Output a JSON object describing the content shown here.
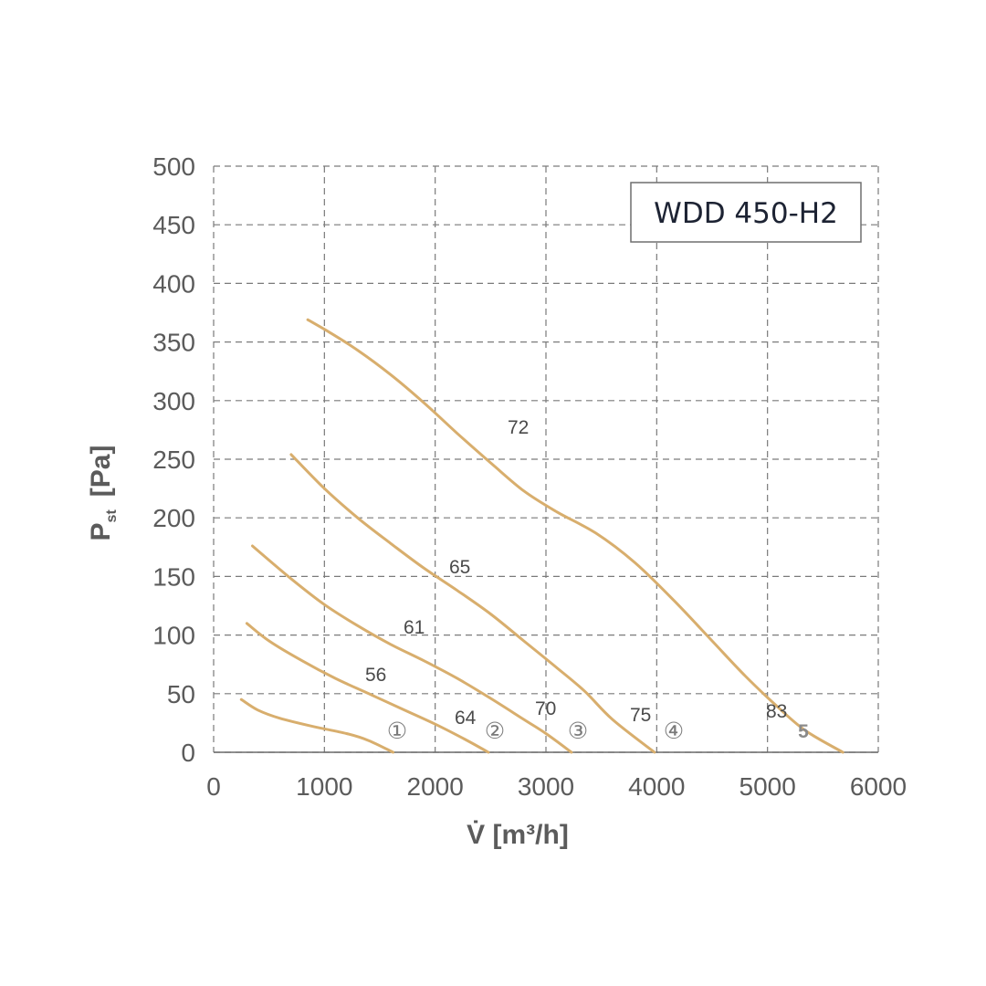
{
  "chart_data": {
    "type": "line",
    "title": "WDD 450-H2",
    "xlabel": "V̇ [m³/h]",
    "ylabel": "Pst [Pa]",
    "ylabel_main": "P",
    "ylabel_sub": "st",
    "ylabel_unit": "[Pa]",
    "xlim": [
      0,
      6000
    ],
    "ylim": [
      0,
      500
    ],
    "xticks": [
      "0",
      "1000",
      "2000",
      "3000",
      "4000",
      "5000",
      "6000"
    ],
    "yticks": [
      "0",
      "50",
      "100",
      "150",
      "200",
      "250",
      "300",
      "350",
      "400",
      "450",
      "500"
    ],
    "grid": true,
    "line_color": "#d8ae6d",
    "series": [
      {
        "name": "①",
        "points": [
          [
            250,
            45
          ],
          [
            400,
            36
          ],
          [
            600,
            29
          ],
          [
            900,
            22
          ],
          [
            1200,
            16
          ],
          [
            1400,
            10
          ],
          [
            1620,
            0
          ]
        ]
      },
      {
        "name": "②",
        "points": [
          [
            300,
            110
          ],
          [
            500,
            95
          ],
          [
            800,
            78
          ],
          [
            1100,
            63
          ],
          [
            1400,
            50
          ],
          [
            1700,
            37
          ],
          [
            2000,
            24
          ],
          [
            2250,
            12
          ],
          [
            2480,
            0
          ]
        ]
      },
      {
        "name": "③",
        "points": [
          [
            350,
            176
          ],
          [
            700,
            148
          ],
          [
            1000,
            126
          ],
          [
            1300,
            108
          ],
          [
            1600,
            92
          ],
          [
            1900,
            78
          ],
          [
            2200,
            63
          ],
          [
            2500,
            46
          ],
          [
            2800,
            28
          ],
          [
            3000,
            16
          ],
          [
            3230,
            0
          ]
        ]
      },
      {
        "name": "④",
        "points": [
          [
            700,
            254
          ],
          [
            1000,
            225
          ],
          [
            1300,
            200
          ],
          [
            1600,
            178
          ],
          [
            1900,
            157
          ],
          [
            2200,
            138
          ],
          [
            2500,
            118
          ],
          [
            2800,
            95
          ],
          [
            3100,
            72
          ],
          [
            3350,
            52
          ],
          [
            3600,
            28
          ],
          [
            3980,
            0
          ]
        ]
      },
      {
        "name": "5",
        "points": [
          [
            850,
            369
          ],
          [
            1050,
            358
          ],
          [
            1300,
            343
          ],
          [
            1600,
            322
          ],
          [
            1900,
            298
          ],
          [
            2200,
            272
          ],
          [
            2500,
            247
          ],
          [
            2800,
            223
          ],
          [
            3100,
            205
          ],
          [
            3450,
            187
          ],
          [
            3800,
            162
          ],
          [
            4150,
            130
          ],
          [
            4500,
            95
          ],
          [
            4800,
            65
          ],
          [
            5100,
            38
          ],
          [
            5350,
            18
          ],
          [
            5680,
            0
          ]
        ]
      }
    ],
    "annotations": [
      "56",
      "61",
      "64",
      "65",
      "70",
      "72",
      "75",
      "83"
    ]
  }
}
